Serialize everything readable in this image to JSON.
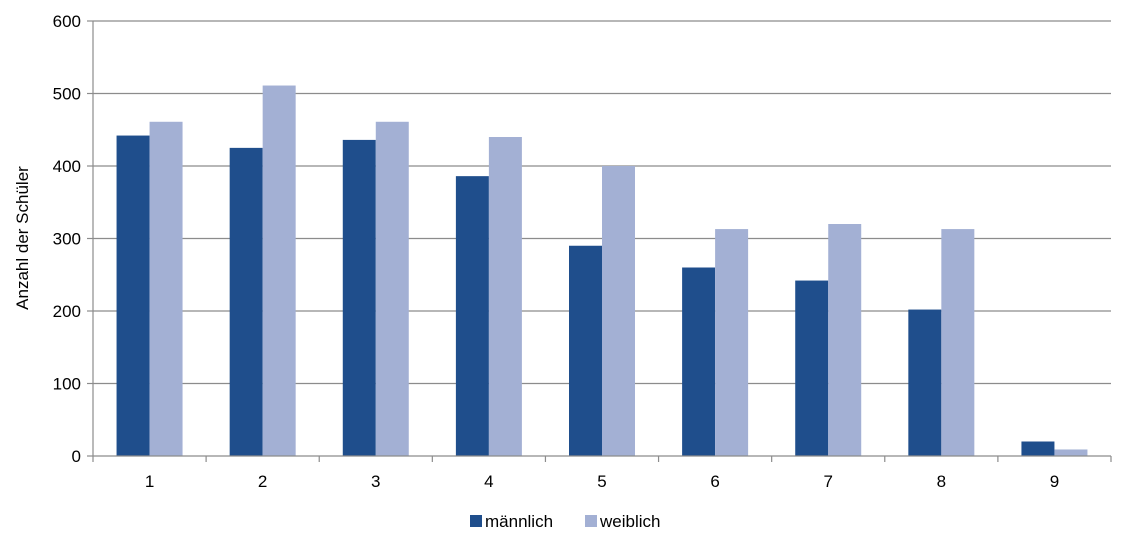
{
  "chart_data": {
    "type": "bar",
    "title": "",
    "xlabel": "",
    "ylabel": "Anzahl der Schüler",
    "categories": [
      "1",
      "2",
      "3",
      "4",
      "5",
      "6",
      "7",
      "8",
      "9"
    ],
    "series": [
      {
        "name": "männlich",
        "color": "#1f4e8c",
        "values": [
          442,
          425,
          436,
          386,
          290,
          260,
          242,
          202,
          20
        ]
      },
      {
        "name": "weiblich",
        "color": "#a3b0d4",
        "values": [
          461,
          511,
          461,
          440,
          400,
          313,
          320,
          313,
          9
        ]
      }
    ],
    "ylim": [
      0,
      600
    ],
    "yticks": [
      "0",
      "100",
      "200",
      "300",
      "400",
      "500",
      "600"
    ],
    "grid": true,
    "legend_position": "bottom-center"
  }
}
